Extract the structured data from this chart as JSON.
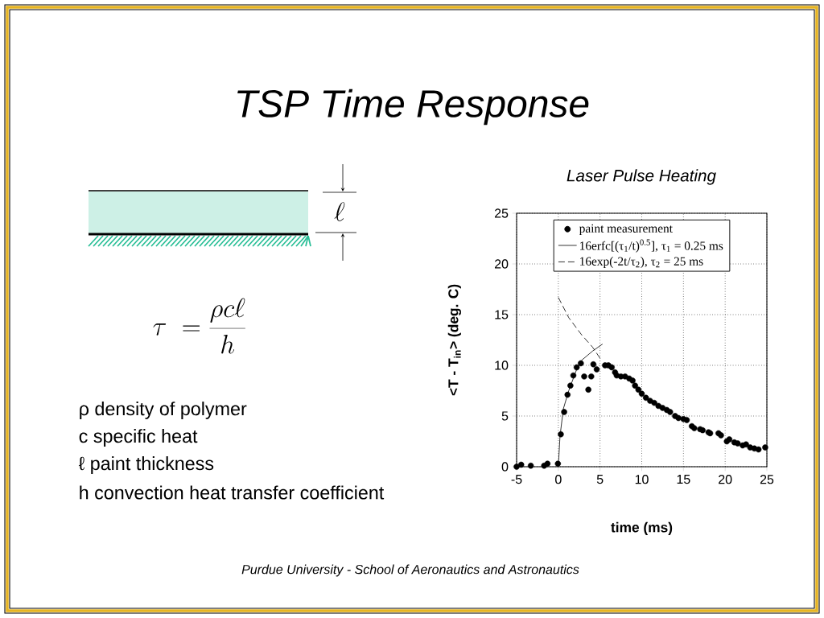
{
  "chart_data": {
    "type": "scatter",
    "title": "TSP Time Response",
    "subtitle": "Laser Pulse Heating",
    "xlabel": "time (ms)",
    "ylabel": "<T - T$_{in}$> (deg. C)",
    "xlim": [
      -5,
      25
    ],
    "ylim": [
      0,
      25
    ],
    "xticks": [
      -5,
      0,
      5,
      10,
      15,
      20,
      25
    ],
    "yticks": [
      0,
      5,
      10,
      15,
      20,
      25
    ],
    "grid": true,
    "legend": "top",
    "series": [
      {
        "name": "paint measurement",
        "marker": "circle",
        "color": "#000000",
        "x": [
          -5,
          -4.45,
          -3.3,
          -1.7,
          -1.3,
          -0.05,
          0.3,
          0.7,
          1.1,
          1.45,
          1.8,
          2.2,
          2.7,
          3.1,
          3.6,
          3.95,
          4.2,
          4.6,
          5.6,
          6.0,
          6.4,
          6.8,
          7.0,
          7.5,
          8.0,
          8.5,
          8.9,
          9.2,
          9.6,
          10.0,
          10.5,
          11.0,
          11.5,
          12.0,
          12.5,
          13.0,
          13.4,
          14.0,
          14.4,
          15.0,
          15.4,
          16.0,
          16.3,
          17.0,
          17.3,
          18.0,
          18.2,
          19.2,
          19.5,
          20.2,
          20.5,
          21.1,
          21.5,
          22.1,
          22.5,
          23.0,
          23.5,
          24.0,
          24.8
        ],
        "values": [
          0,
          0.2,
          0.1,
          0.1,
          0.3,
          0.3,
          3.2,
          5.4,
          7.1,
          8.0,
          9.0,
          9.8,
          10.2,
          8.9,
          7.6,
          8.9,
          10.1,
          9.6,
          10.0,
          10.0,
          9.8,
          9.3,
          9.0,
          8.9,
          8.9,
          8.7,
          8.5,
          8.0,
          7.6,
          7.2,
          6.8,
          6.5,
          6.3,
          6.0,
          5.8,
          5.6,
          5.4,
          5.0,
          4.8,
          4.7,
          4.6,
          4.0,
          3.8,
          3.7,
          3.6,
          3.4,
          3.3,
          3.3,
          3.1,
          2.5,
          2.7,
          2.4,
          2.3,
          2.1,
          2.2,
          1.9,
          1.8,
          1.7,
          1.9
        ]
      },
      {
        "name": "16erfc[(τ$_{1}$/t)$^{0.5}$], τ$_{1}$ = 0.25 ms",
        "type": "line",
        "line_style": "solid",
        "color": "#000000",
        "x": [
          0,
          0.2,
          0.6,
          1.25,
          2.2,
          2.8,
          4.1,
          5.3
        ],
        "values": [
          0,
          3.0,
          5.7,
          7.5,
          9.6,
          10.5,
          11.4,
          12.1
        ]
      },
      {
        "name": "16exp(-2t/τ$_{2}$), τ$_{2}$ = 25 ms",
        "type": "line",
        "line_style": "dashed",
        "color": "#000000",
        "x": [
          0,
          1.25,
          2.8,
          4.1,
          5.0
        ],
        "values": [
          16.7,
          14.7,
          13.0,
          11.8,
          10.7
        ]
      }
    ],
    "annotations": [
      "\\ell",
      "\\tau\\;=\\frac{\\rho c\\ell}{h}",
      "ρ  density of polymer",
      "c  specific heat",
      "ℓ  paint thickness",
      "h  convection heat transfer coefficient",
      "Purdue University - School of Aeronautics and Astronautics"
    ]
  }
}
